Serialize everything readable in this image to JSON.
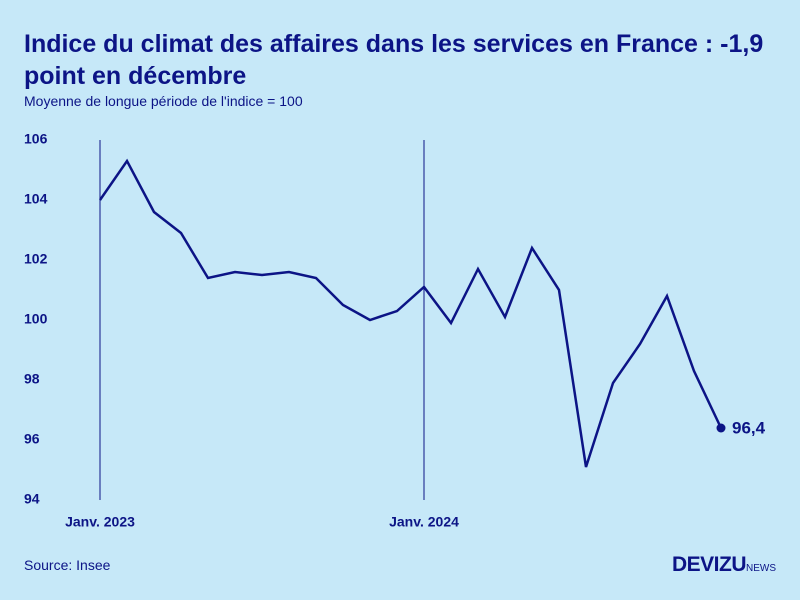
{
  "chart_data": {
    "type": "line",
    "title": "Indice du climat des affaires dans les services en France : -1,9 point en décembre",
    "subtitle": "Moyenne de longue période de l'indice = 100",
    "source": "Source: Insee",
    "brand": {
      "name": "DEVIZU",
      "suffix": "NEWS"
    },
    "categories": [
      "Janv. 2023",
      null,
      null,
      null,
      null,
      null,
      null,
      null,
      null,
      null,
      null,
      null,
      "Janv. 2024",
      null,
      null,
      null,
      null,
      null,
      null,
      null,
      null,
      null,
      null,
      null
    ],
    "values": [
      104.0,
      105.3,
      103.6,
      102.9,
      101.4,
      101.6,
      101.5,
      101.6,
      101.4,
      100.5,
      100.0,
      100.3,
      101.1,
      99.9,
      101.7,
      100.1,
      102.4,
      101.0,
      95.1,
      97.9,
      99.2,
      100.8,
      98.3,
      96.4
    ],
    "value_labels": [
      null,
      null,
      null,
      null,
      null,
      null,
      null,
      null,
      null,
      null,
      null,
      null,
      null,
      null,
      null,
      null,
      null,
      null,
      null,
      null,
      null,
      null,
      null,
      "96,4"
    ],
    "color": "#0c1486",
    "ylim": [
      94,
      106
    ],
    "yticks": [
      94,
      96,
      98,
      100,
      102,
      104,
      106
    ],
    "grid": false
  }
}
